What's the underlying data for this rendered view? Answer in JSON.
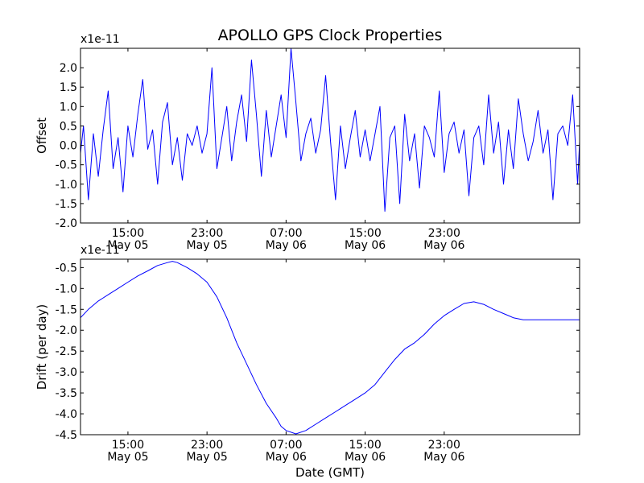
{
  "chart_data": [
    {
      "type": "line",
      "title": "APOLLO GPS Clock Properties",
      "ylabel": "Offset",
      "xlabel": "",
      "exponent_label": "x1e-11",
      "ylim": [
        -2.0,
        2.5
      ],
      "xlim_hours": [
        10.2,
        60.7
      ],
      "yticks": [
        -2.0,
        -1.5,
        -1.0,
        -0.5,
        0.0,
        0.5,
        1.0,
        1.5,
        2.0
      ],
      "ytick_labels": [
        "-2.0",
        "-1.5",
        "-1.0",
        "-0.5",
        "0.0",
        "0.5",
        "1.0",
        "1.5",
        "2.0"
      ],
      "xticks_hours": [
        15,
        23,
        31,
        39,
        47
      ],
      "xtick_labels": [
        [
          "15:00",
          "May 05"
        ],
        [
          "23:00",
          "May 05"
        ],
        [
          "07:00",
          "May 06"
        ],
        [
          "15:00",
          "May 06"
        ],
        [
          "23:00",
          "May 06"
        ]
      ],
      "series": [
        {
          "name": "offset",
          "color": "#0000ff",
          "x_hours": [
            10.2,
            10.5,
            11.0,
            11.5,
            12.0,
            12.5,
            13.0,
            13.5,
            14.0,
            14.5,
            15.0,
            15.5,
            16.0,
            16.5,
            17.0,
            17.5,
            18.0,
            18.5,
            19.0,
            19.5,
            20.0,
            20.5,
            21.0,
            21.5,
            22.0,
            22.5,
            23.0,
            23.5,
            24.0,
            24.5,
            25.0,
            25.5,
            26.0,
            26.5,
            27.0,
            27.5,
            28.0,
            28.5,
            29.0,
            29.5,
            30.0,
            30.5,
            31.0,
            31.5,
            32.0,
            32.5,
            33.0,
            33.5,
            34.0,
            34.5,
            35.0,
            35.5,
            36.0,
            36.5,
            37.0,
            37.5,
            38.0,
            38.5,
            39.0,
            39.5,
            40.0,
            40.5,
            41.0,
            41.5,
            42.0,
            42.5,
            43.0,
            43.5,
            44.0,
            44.5,
            45.0,
            45.5,
            46.0,
            46.5,
            47.0,
            47.5,
            48.0,
            48.5,
            49.0,
            49.5,
            50.0,
            50.5,
            51.0,
            51.5,
            52.0,
            52.5,
            53.0,
            53.5,
            54.0,
            54.5,
            55.0,
            55.5,
            56.0,
            56.5,
            57.0,
            57.5,
            58.0,
            58.5,
            59.0,
            59.5,
            60.0,
            60.5,
            60.7
          ],
          "values": [
            -0.2,
            0.5,
            -1.4,
            0.3,
            -0.8,
            0.4,
            1.4,
            -0.6,
            0.2,
            -1.2,
            0.5,
            -0.3,
            0.8,
            1.7,
            -0.1,
            0.4,
            -1.0,
            0.6,
            1.1,
            -0.5,
            0.2,
            -0.9,
            0.3,
            0.0,
            0.5,
            -0.2,
            0.3,
            2.0,
            -0.6,
            0.2,
            1.0,
            -0.4,
            0.6,
            1.3,
            0.1,
            2.2,
            0.8,
            -0.8,
            0.9,
            -0.3,
            0.5,
            1.3,
            0.2,
            2.5,
            1.1,
            -0.4,
            0.3,
            0.7,
            -0.2,
            0.4,
            1.8,
            0.1,
            -1.4,
            0.5,
            -0.6,
            0.2,
            0.9,
            -0.3,
            0.4,
            -0.4,
            0.3,
            1.0,
            -1.7,
            0.2,
            0.5,
            -1.5,
            0.8,
            -0.4,
            0.3,
            -1.1,
            0.5,
            0.2,
            -0.3,
            1.4,
            -0.7,
            0.3,
            0.6,
            -0.2,
            0.4,
            -1.3,
            0.2,
            0.5,
            -0.5,
            1.3,
            -0.2,
            0.6,
            -1.0,
            0.4,
            -0.6,
            1.2,
            0.3,
            -0.4,
            0.1,
            0.9,
            -0.2,
            0.4,
            -1.4,
            0.3,
            0.5,
            0.0,
            1.3,
            -1.0,
            0.1
          ]
        }
      ]
    },
    {
      "type": "line",
      "title": "",
      "ylabel": "Drift (per day)",
      "xlabel": "Date (GMT)",
      "exponent_label": "x1e-11",
      "ylim": [
        -4.5,
        -0.3
      ],
      "xlim_hours": [
        10.2,
        60.7
      ],
      "yticks": [
        -4.5,
        -4.0,
        -3.5,
        -3.0,
        -2.5,
        -2.0,
        -1.5,
        -1.0,
        -0.5
      ],
      "ytick_labels": [
        "-4.5",
        "-4.0",
        "-3.5",
        "-3.0",
        "-2.5",
        "-2.0",
        "-1.5",
        "-1.0",
        "-0.5"
      ],
      "xticks_hours": [
        15,
        23,
        31,
        39,
        47
      ],
      "xtick_labels": [
        [
          "15:00",
          "May 05"
        ],
        [
          "23:00",
          "May 05"
        ],
        [
          "07:00",
          "May 06"
        ],
        [
          "15:00",
          "May 06"
        ],
        [
          "23:00",
          "May 06"
        ]
      ],
      "series": [
        {
          "name": "drift",
          "color": "#0000ff",
          "x_hours": [
            10.2,
            11.0,
            12.0,
            13.0,
            14.0,
            15.0,
            16.0,
            17.0,
            18.0,
            19.0,
            19.5,
            20.0,
            21.0,
            22.0,
            23.0,
            24.0,
            25.0,
            26.0,
            27.0,
            28.0,
            29.0,
            30.0,
            30.5,
            31.0,
            32.0,
            33.0,
            34.0,
            35.0,
            36.0,
            37.0,
            38.0,
            39.0,
            40.0,
            41.0,
            42.0,
            43.0,
            44.0,
            45.0,
            46.0,
            47.0,
            48.0,
            49.0,
            50.0,
            51.0,
            52.0,
            53.0,
            54.0,
            55.0,
            56.0,
            57.0,
            58.0,
            59.0,
            60.0,
            60.7
          ],
          "values": [
            -1.7,
            -1.5,
            -1.3,
            -1.15,
            -1.0,
            -0.85,
            -0.7,
            -0.58,
            -0.45,
            -0.38,
            -0.35,
            -0.38,
            -0.5,
            -0.65,
            -0.85,
            -1.2,
            -1.7,
            -2.3,
            -2.8,
            -3.3,
            -3.75,
            -4.1,
            -4.3,
            -4.4,
            -4.48,
            -4.4,
            -4.25,
            -4.1,
            -3.95,
            -3.8,
            -3.65,
            -3.5,
            -3.3,
            -3.0,
            -2.7,
            -2.45,
            -2.3,
            -2.1,
            -1.85,
            -1.65,
            -1.5,
            -1.36,
            -1.32,
            -1.38,
            -1.5,
            -1.6,
            -1.7,
            -1.75,
            -1.75,
            -1.75,
            -1.75,
            -1.75,
            -1.75,
            -1.75
          ]
        }
      ]
    }
  ]
}
